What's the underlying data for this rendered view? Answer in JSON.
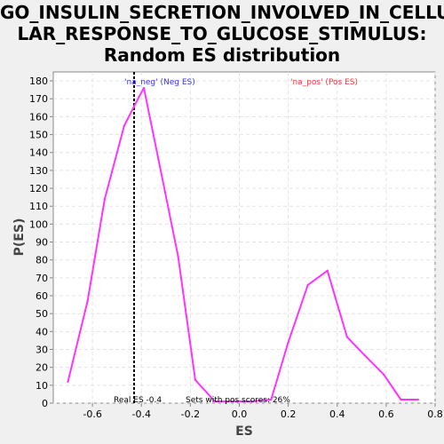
{
  "chart_data": {
    "type": "line",
    "title_lines": [
      "GO_INSULIN_SECRETION_INVOLVED_IN_CELLU",
      "LAR_RESPONSE_TO_GLUCOSE_STIMULUS:",
      "Random ES distribution"
    ],
    "xlabel": "ES",
    "ylabel": "P(ES)",
    "xlim": [
      -0.76,
      0.8
    ],
    "ylim": [
      0,
      185
    ],
    "xticks": [
      -0.6,
      -0.4,
      -0.2,
      0.0,
      0.2,
      0.4,
      0.6,
      0.8
    ],
    "xtick_labels": [
      "-0.6",
      "-0.4",
      "-0.2",
      "0.0",
      "0.2",
      "0.4",
      "0.6",
      "0.8"
    ],
    "yticks": [
      0,
      10,
      20,
      30,
      40,
      50,
      60,
      70,
      80,
      90,
      100,
      110,
      120,
      130,
      140,
      150,
      160,
      170,
      180
    ],
    "grid": true,
    "series": [
      {
        "color": "#ff33ff",
        "x": [
          -0.7,
          -0.62,
          -0.55,
          -0.47,
          -0.41,
          -0.39,
          -0.33,
          -0.25,
          -0.18,
          -0.1,
          0.0,
          0.05,
          0.13,
          0.2,
          0.28,
          0.36,
          0.44,
          0.51,
          0.59,
          0.66,
          0.73
        ],
        "y": [
          12,
          57,
          114,
          155,
          171,
          176,
          136,
          82,
          13,
          1,
          1,
          1,
          2,
          34,
          66,
          74,
          37,
          27,
          16,
          2,
          2
        ]
      }
    ],
    "real_es_line": {
      "x": -0.43,
      "color": "#000000"
    },
    "annotations": {
      "neg_label": "'na_neg' (Neg ES)",
      "neg_color": "#3333ff",
      "pos_label": "'na_pos' (Pos ES)",
      "pos_color": "#ff3333",
      "real_es": "Real ES -0.4",
      "pos_scores": "Sets with pos scores: 26%"
    }
  }
}
